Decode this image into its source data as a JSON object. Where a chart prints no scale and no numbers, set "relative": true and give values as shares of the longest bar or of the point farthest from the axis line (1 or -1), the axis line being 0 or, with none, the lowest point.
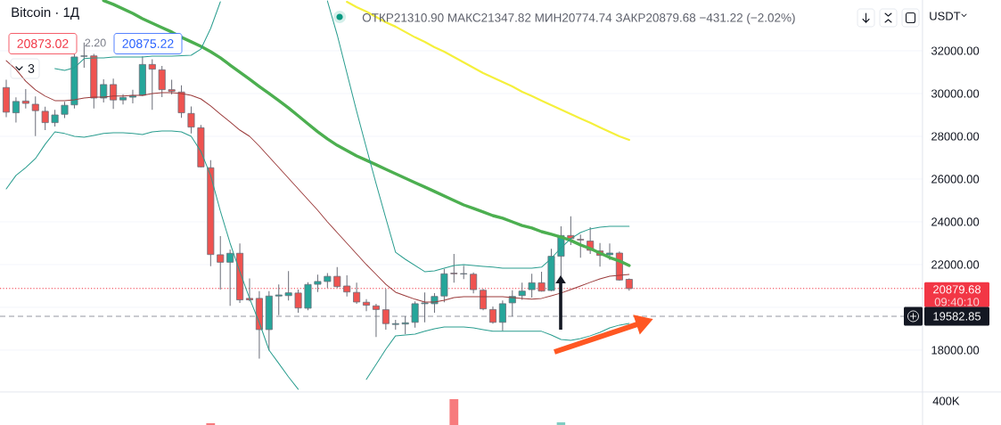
{
  "chart_data": [
    {
      "type": "candlestick",
      "title": "Bitcoin · 1Д",
      "subtitle": "ОТКР21310.90 МАКС21347.82 МИН20774.74 ЗАКР20879.68 −431.22 (−2.02%)",
      "ylabel": "USDT",
      "categories": [
        null,
        null,
        null,
        null,
        null,
        null,
        null,
        null,
        null,
        null,
        null,
        null,
        null,
        null,
        null,
        null,
        null,
        null,
        null,
        null,
        null,
        null,
        null,
        null,
        null,
        null,
        null,
        null,
        null,
        null,
        null,
        null,
        null,
        null,
        null,
        null,
        null,
        null,
        null,
        null,
        null,
        null,
        null,
        null,
        null,
        null,
        null,
        null,
        null,
        null,
        null,
        null,
        null,
        null,
        null,
        null,
        null,
        null,
        null,
        null,
        null,
        null,
        null,
        null,
        null
      ],
      "ohlc": [
        [
          30280,
          30650,
          28890,
          29130
        ],
        [
          29100,
          29820,
          28650,
          29630
        ],
        [
          29650,
          30210,
          29300,
          29540
        ],
        [
          29500,
          29860,
          28010,
          29200
        ],
        [
          29170,
          29380,
          28290,
          28640
        ],
        [
          28640,
          29240,
          28460,
          29000
        ],
        [
          29030,
          29610,
          28850,
          29450
        ],
        [
          29470,
          31830,
          29300,
          31710
        ],
        [
          31740,
          32380,
          31210,
          31760
        ],
        [
          31760,
          31850,
          29300,
          29790
        ],
        [
          29790,
          30670,
          29580,
          30420
        ],
        [
          30420,
          30700,
          29280,
          29700
        ],
        [
          29700,
          29970,
          29490,
          29820
        ],
        [
          29830,
          30180,
          29540,
          29900
        ],
        [
          29920,
          31740,
          29880,
          31360
        ],
        [
          31360,
          31600,
          29240,
          31140
        ],
        [
          31110,
          31290,
          29830,
          30180
        ],
        [
          30180,
          30650,
          29960,
          30100
        ],
        [
          30070,
          30380,
          28860,
          29100
        ],
        [
          29070,
          29400,
          28130,
          28430
        ],
        [
          28400,
          28530,
          26550,
          26570
        ],
        [
          26530,
          26880,
          21930,
          22470
        ],
        [
          22460,
          23330,
          20830,
          22110
        ],
        [
          22110,
          22710,
          20070,
          22530
        ],
        [
          22530,
          22990,
          20210,
          20350
        ],
        [
          20420,
          21350,
          20280,
          20350
        ],
        [
          20420,
          20760,
          17600,
          18960
        ],
        [
          18960,
          20760,
          17990,
          20530
        ],
        [
          20530,
          21070,
          19630,
          20580
        ],
        [
          20550,
          21700,
          20320,
          20680
        ],
        [
          20670,
          20830,
          19750,
          19970
        ],
        [
          19960,
          21180,
          19860,
          21070
        ],
        [
          21080,
          21530,
          20720,
          21210
        ],
        [
          21210,
          21600,
          20900,
          21450
        ],
        [
          21450,
          21880,
          20900,
          20970
        ],
        [
          21000,
          21500,
          20510,
          20720
        ],
        [
          20700,
          21150,
          20170,
          20250
        ],
        [
          20240,
          20380,
          19820,
          20100
        ],
        [
          20070,
          20170,
          18610,
          19900
        ],
        [
          19890,
          20860,
          18960,
          19240
        ],
        [
          19200,
          19420,
          18960,
          19240
        ],
        [
          19220,
          19580,
          18750,
          19280
        ],
        [
          19300,
          20280,
          19050,
          20170
        ],
        [
          20170,
          20700,
          19300,
          20210
        ],
        [
          20170,
          20670,
          19750,
          20510
        ],
        [
          20530,
          21800,
          20240,
          21570
        ],
        [
          21600,
          22500,
          21150,
          21570
        ],
        [
          21560,
          21950,
          21320,
          21580
        ],
        [
          21550,
          21630,
          20650,
          20830
        ],
        [
          20800,
          20860,
          19860,
          19930
        ],
        [
          19900,
          20040,
          19240,
          19300
        ],
        [
          19300,
          20320,
          18890,
          20170
        ],
        [
          20210,
          20800,
          19580,
          20510
        ],
        [
          20550,
          21150,
          20350,
          20760
        ],
        [
          20830,
          21570,
          20460,
          21150
        ],
        [
          21150,
          21670,
          20740,
          20760
        ],
        [
          20790,
          22740,
          20760,
          22390
        ],
        [
          22390,
          23790,
          21460,
          23360
        ],
        [
          23360,
          24260,
          22920,
          23220
        ],
        [
          23180,
          23400,
          22320,
          23150
        ],
        [
          23100,
          23750,
          22500,
          22670
        ],
        [
          22640,
          23010,
          21900,
          22430
        ],
        [
          22460,
          22990,
          22220,
          22540
        ],
        [
          22540,
          22610,
          21250,
          21280
        ],
        [
          21310.9,
          21347.82,
          20774.74,
          20879.68
        ]
      ],
      "colors": [
        "#ef5350",
        "#26a69a",
        "#ef5350",
        "#ef5350",
        "#ef5350",
        "#26a69a",
        "#26a69a",
        "#26a69a",
        "#26a69a",
        "#ef5350",
        "#26a69a",
        "#ef5350",
        "#26a69a",
        "#26a69a",
        "#26a69a",
        "#ef5350",
        "#ef5350",
        "#ef5350",
        "#ef5350",
        "#ef5350",
        "#ef5350",
        "#ef5350",
        "#ef5350",
        "#26a69a",
        "#ef5350",
        "#ef5350",
        "#ef5350",
        "#26a69a",
        "#26a69a",
        "#26a69a",
        "#ef5350",
        "#26a69a",
        "#26a69a",
        "#26a69a",
        "#ef5350",
        "#ef5350",
        "#ef5350",
        "#ef5350",
        "#ef5350",
        "#ef5350",
        "#26a69a",
        "#26a69a",
        "#26a69a",
        "#26a69a",
        "#26a69a",
        "#26a69a",
        "#ef5350",
        "#26a69a",
        "#ef5350",
        "#ef5350",
        "#ef5350",
        "#26a69a",
        "#26a69a",
        "#26a69a",
        "#26a69a",
        "#ef5350",
        "#26a69a",
        "#26a69a",
        "#ef5350",
        "#ef5350",
        "#ef5350",
        "#ef5350",
        "#26a69a",
        "#ef5350",
        "#ef5350"
      ],
      "series": [
        {
          "type": "line",
          "color": "#f5f03c",
          "values": [
            null,
            null,
            null,
            null,
            null,
            null,
            null,
            null,
            null,
            null,
            null,
            null,
            null,
            null,
            null,
            null,
            null,
            null,
            null,
            null,
            null,
            null,
            null,
            null,
            null,
            null,
            null,
            null,
            null,
            null,
            null,
            null,
            null,
            null,
            null,
            34290,
            34040,
            33830,
            33580,
            33330,
            33130,
            32880,
            32630,
            32420,
            32170,
            31960,
            31710,
            31460,
            31210,
            30960,
            30750,
            30540,
            30330,
            30080,
            29880,
            29670,
            29460,
            29250,
            29040,
            28830,
            28630,
            28420,
            28210,
            28000,
            27830
          ]
        },
        {
          "type": "line",
          "color": "#4caf50",
          "values": [
            null,
            null,
            null,
            null,
            null,
            null,
            null,
            null,
            null,
            null,
            34350,
            34170,
            33960,
            33750,
            33500,
            33290,
            33080,
            32880,
            32630,
            32420,
            32210,
            31960,
            31670,
            31330,
            31000,
            30670,
            30330,
            30000,
            29670,
            29330,
            28960,
            28580,
            28210,
            27880,
            27580,
            27330,
            27080,
            26880,
            26670,
            26460,
            26250,
            26040,
            25830,
            25630,
            25420,
            25210,
            25000,
            24790,
            24630,
            24460,
            24290,
            24170,
            24000,
            23830,
            23710,
            23540,
            23420,
            23290,
            23130,
            22920,
            22750,
            22540,
            22330,
            22170,
            21960
          ]
        },
        {
          "type": "line",
          "color": "#2a9d8f",
          "values": [
            null,
            null,
            null,
            null,
            null,
            31170,
            31080,
            31210,
            31630,
            31670,
            31670,
            31710,
            31710,
            31710,
            31710,
            31750,
            31750,
            31750,
            31770,
            31790,
            32080,
            33040,
            34290,
            null,
            null,
            null,
            null,
            null,
            null,
            null,
            null,
            null,
            null,
            34330,
            32750,
            30960,
            29170,
            27460,
            25790,
            24170,
            22580,
            22250,
            21960,
            21670,
            21710,
            21830,
            21960,
            22000,
            21960,
            21920,
            21880,
            21830,
            21830,
            21830,
            21830,
            21880,
            22290,
            22790,
            23210,
            23500,
            23670,
            23750,
            23790,
            23790,
            23790
          ]
        },
        {
          "type": "line",
          "color": "#9b3b3b",
          "values": [
            31540,
            31130,
            30580,
            30170,
            29880,
            29670,
            29670,
            29710,
            29790,
            29830,
            29830,
            29880,
            29880,
            29920,
            29920,
            30000,
            30040,
            30040,
            30000,
            29920,
            29750,
            29420,
            29040,
            28670,
            28290,
            28000,
            27540,
            27040,
            26540,
            26040,
            25540,
            25040,
            24540,
            24000,
            23500,
            23000,
            22500,
            22000,
            21540,
            21080,
            20710,
            20540,
            20380,
            20250,
            20250,
            20330,
            20460,
            20500,
            20500,
            20500,
            20500,
            20500,
            20460,
            20420,
            20380,
            20420,
            20540,
            20670,
            20830,
            21000,
            21170,
            21330,
            21460,
            21500,
            21540
          ]
        },
        {
          "type": "line",
          "color": "#2a9d8f",
          "values": [
            25540,
            26170,
            26540,
            26960,
            27630,
            28210,
            28130,
            28000,
            27960,
            28040,
            28130,
            28170,
            28170,
            28130,
            28080,
            28210,
            28250,
            28250,
            28210,
            28000,
            27290,
            26170,
            24500,
            23000,
            21670,
            20420,
            19290,
            18000,
            17380,
            16750,
            16170,
            null,
            null,
            null,
            null,
            null,
            null,
            16630,
            17330,
            18040,
            18670,
            18710,
            18750,
            18880,
            19000,
            19080,
            19080,
            19080,
            19040,
            18960,
            18880,
            18880,
            18880,
            18880,
            18880,
            18880,
            18710,
            18500,
            18460,
            18540,
            18670,
            18830,
            19040,
            19170,
            19250
          ]
        }
      ],
      "ylim": [
        16040,
        34375
      ],
      "yticks": [
        {
          "value": 18000,
          "label": "18000.00"
        },
        {
          "value": 20000,
          "label": null
        },
        {
          "value": 22000,
          "label": "22000.00"
        },
        {
          "value": 24000,
          "label": "24000.00"
        },
        {
          "value": 26000,
          "label": "26000.00"
        },
        {
          "value": 28000,
          "label": "28000.00"
        },
        {
          "value": 30000,
          "label": "30000.00"
        },
        {
          "value": 32000,
          "label": "32000.00"
        }
      ],
      "grid": "y",
      "tick_labels": "y",
      "ref_lines": [
        {
          "axis": "y",
          "value": 20879.68,
          "label": "20879.68",
          "color": "#f23645",
          "line_style": "dotted"
        },
        {
          "axis": "y",
          "value": 19582.85,
          "label": "19582.85",
          "color": "#9598a1",
          "line_style": "dashed"
        }
      ],
      "annotations": [
        "20873.02",
        "2.20",
        "20875.22",
        "3",
        "09:40:10"
      ]
    },
    {
      "type": "bar",
      "relative": true,
      "categories": [
        null,
        null,
        null,
        null,
        null,
        null,
        null,
        null,
        null,
        null,
        null,
        null,
        null,
        null,
        null,
        null,
        null,
        null,
        null,
        null,
        null,
        null,
        null,
        null,
        null,
        null,
        null,
        null,
        null,
        null,
        null,
        null,
        null,
        null,
        null,
        null,
        null,
        null,
        null,
        null,
        null,
        null,
        null,
        null,
        null,
        null,
        null,
        null,
        null,
        null,
        null,
        null,
        null,
        null,
        null,
        null,
        null,
        null,
        null,
        null,
        null,
        null,
        null,
        null,
        null
      ],
      "values": [
        null,
        null,
        null,
        null,
        null,
        null,
        null,
        null,
        null,
        null,
        null,
        null,
        null,
        null,
        null,
        null,
        null,
        null,
        null,
        null,
        null,
        0.07,
        null,
        null,
        null,
        null,
        null,
        null,
        null,
        null,
        null,
        null,
        null,
        null,
        null,
        null,
        null,
        null,
        null,
        null,
        null,
        null,
        null,
        null,
        null,
        null,
        1,
        null,
        null,
        null,
        null,
        null,
        null,
        null,
        null,
        null,
        null,
        0.1,
        null,
        null,
        null,
        null,
        null,
        null,
        null
      ],
      "colors": [
        null,
        null,
        null,
        null,
        null,
        null,
        null,
        null,
        null,
        null,
        null,
        null,
        null,
        null,
        null,
        null,
        null,
        null,
        null,
        null,
        null,
        "#f77b7d",
        null,
        null,
        null,
        null,
        null,
        null,
        null,
        null,
        null,
        null,
        null,
        null,
        null,
        null,
        null,
        null,
        null,
        null,
        null,
        null,
        null,
        null,
        null,
        null,
        "#f77b7d",
        null,
        null,
        null,
        null,
        null,
        null,
        null,
        null,
        null,
        null,
        "#7fcdc2",
        null,
        null,
        null,
        null,
        null,
        null,
        null
      ],
      "annotations": [
        "400K"
      ]
    }
  ]
}
